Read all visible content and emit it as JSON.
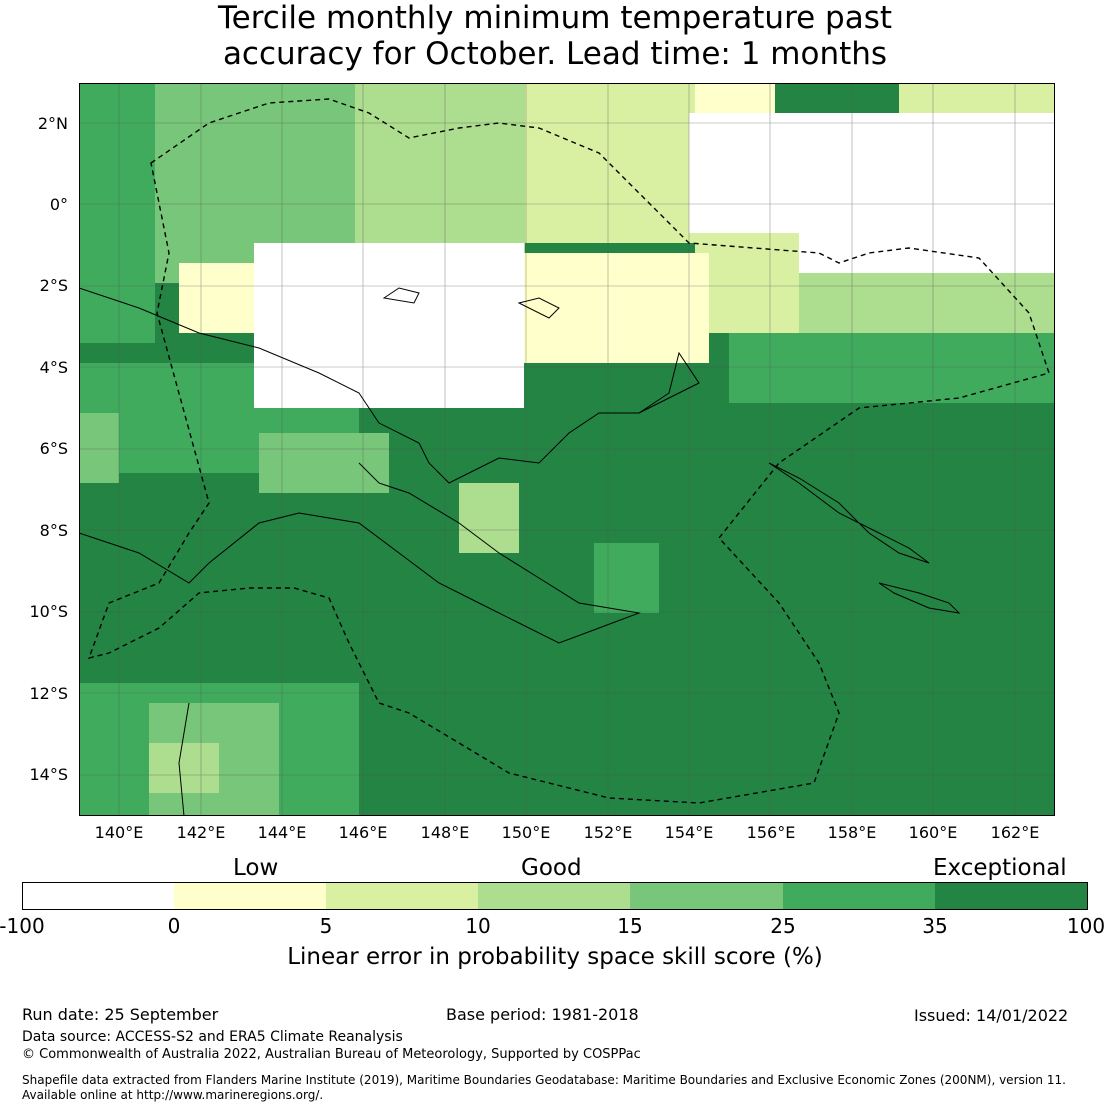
{
  "title": {
    "line1": "Tercile monthly minimum temperature past",
    "line2": "accuracy for October. Lead time: 1 months"
  },
  "map": {
    "lat_labels": [
      "2°N",
      "0°",
      "2°S",
      "4°S",
      "6°S",
      "8°S",
      "10°S",
      "12°S",
      "14°S"
    ],
    "lon_labels": [
      "140°E",
      "142°E",
      "144°E",
      "146°E",
      "148°E",
      "150°E",
      "152°E",
      "154°E",
      "156°E",
      "158°E",
      "160°E",
      "162°E"
    ]
  },
  "legend": {
    "categories": [
      "Low",
      "Good",
      "Exceptional"
    ],
    "ticks": [
      "-100",
      "0",
      "5",
      "10",
      "15",
      "25",
      "35",
      "100"
    ],
    "colors": [
      "#ffffff",
      "#ffffcc",
      "#d9f0a3",
      "#addd8e",
      "#78c679",
      "#41ab5d",
      "#238443"
    ],
    "label": "Linear error in probability space skill score (%)"
  },
  "footer": {
    "run_date": "Run date: 25 September",
    "base_period": "Base period: 1981-2018",
    "issued": "Issued: 14/01/2022",
    "data_source": "Data source: ACCESS-S2 and ERA5 Climate Reanalysis",
    "copyright": "© Commonwealth of Australia 2022, Australian Bureau of Meteorology, Supported by COSPPac",
    "shapefile_1": "Shapefile data extracted from Flanders Marine Institute (2019), Maritime Boundaries Geodatabase: Maritime Boundaries and Exclusive Economic Zones (200NM), version 11.",
    "shapefile_2": "Available online at http://www.marineregions.org/."
  }
}
